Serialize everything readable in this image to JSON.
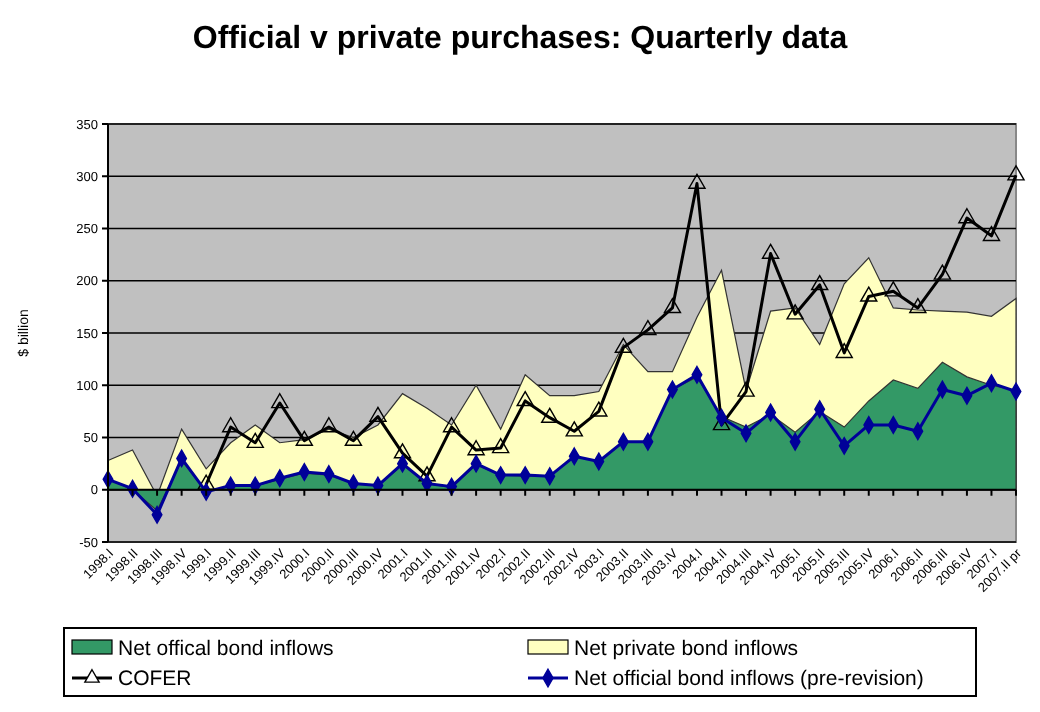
{
  "chart_data": {
    "type": "area",
    "stacked": true,
    "title": "Official v private purchases: Quarterly data",
    "ylabel": "$ billion",
    "categories": [
      "1998.I",
      "1998.II",
      "1998.III",
      "1998.IV",
      "1999.I",
      "1999.II",
      "1999.III",
      "1999.IV",
      "2000.I",
      "2000.II",
      "2000.III",
      "2000.IV",
      "2001.I",
      "2001.II",
      "2001.III",
      "2001.IV",
      "2002.I",
      "2002.II",
      "2002.III",
      "2002.IV",
      "2003.I",
      "2003.II",
      "2003.III",
      "2003.IV",
      "2004.I",
      "2004.II",
      "2004.III",
      "2004.IV",
      "2005.I",
      "2005.II",
      "2005.III",
      "2005.IV",
      "2006.I",
      "2006.II",
      "2006.III",
      "2006.IV",
      "2007.I",
      "2007.II pr"
    ],
    "series": [
      {
        "name": "Net offical bond inflows",
        "color": "#339966",
        "values": [
          10,
          0,
          -20,
          28,
          -2,
          4,
          4,
          10,
          16,
          14,
          6,
          4,
          24,
          6,
          2,
          24,
          14,
          13,
          13,
          32,
          27,
          46,
          46,
          96,
          108,
          70,
          60,
          72,
          55,
          75,
          60,
          85,
          105,
          97,
          122,
          108,
          100,
          95
        ]
      },
      {
        "name": "Net private bond inflows",
        "color": "#ffffc0",
        "values": [
          18,
          38,
          14,
          30,
          22,
          41,
          58,
          35,
          32,
          44,
          44,
          58,
          68,
          72,
          60,
          76,
          44,
          97,
          77,
          58,
          67,
          93,
          67,
          17,
          57,
          140,
          35,
          99,
          119,
          64,
          137,
          137,
          69,
          75,
          49,
          62,
          66,
          88
        ]
      },
      {
        "name": "COFER",
        "type": "line",
        "color": "#000000",
        "marker": "triangle",
        "values": [
          null,
          null,
          null,
          null,
          5,
          60,
          45,
          83,
          47,
          60,
          47,
          70,
          35,
          13,
          60,
          38,
          40,
          85,
          69,
          56,
          75,
          136,
          153,
          174,
          293,
          62,
          94,
          226,
          168,
          196,
          131,
          185,
          190,
          174,
          206,
          260,
          243,
          301
        ]
      },
      {
        "name": "Net official bond inflows (pre-revision)",
        "type": "line",
        "color": "#000099",
        "marker": "diamond",
        "values": [
          10,
          1,
          -24,
          30,
          -2,
          4,
          4,
          11,
          17,
          15,
          6,
          4,
          25,
          6,
          3,
          25,
          14,
          14,
          13,
          32,
          27,
          46,
          46,
          96,
          110,
          69,
          54,
          74,
          46,
          77,
          42,
          62,
          62,
          56,
          96,
          90,
          102,
          94
        ]
      }
    ],
    "ylim": [
      -50,
      350
    ],
    "yticks": [
      -50,
      0,
      50,
      100,
      150,
      200,
      250,
      300,
      350
    ],
    "grid": "y",
    "legend": "bottom"
  }
}
